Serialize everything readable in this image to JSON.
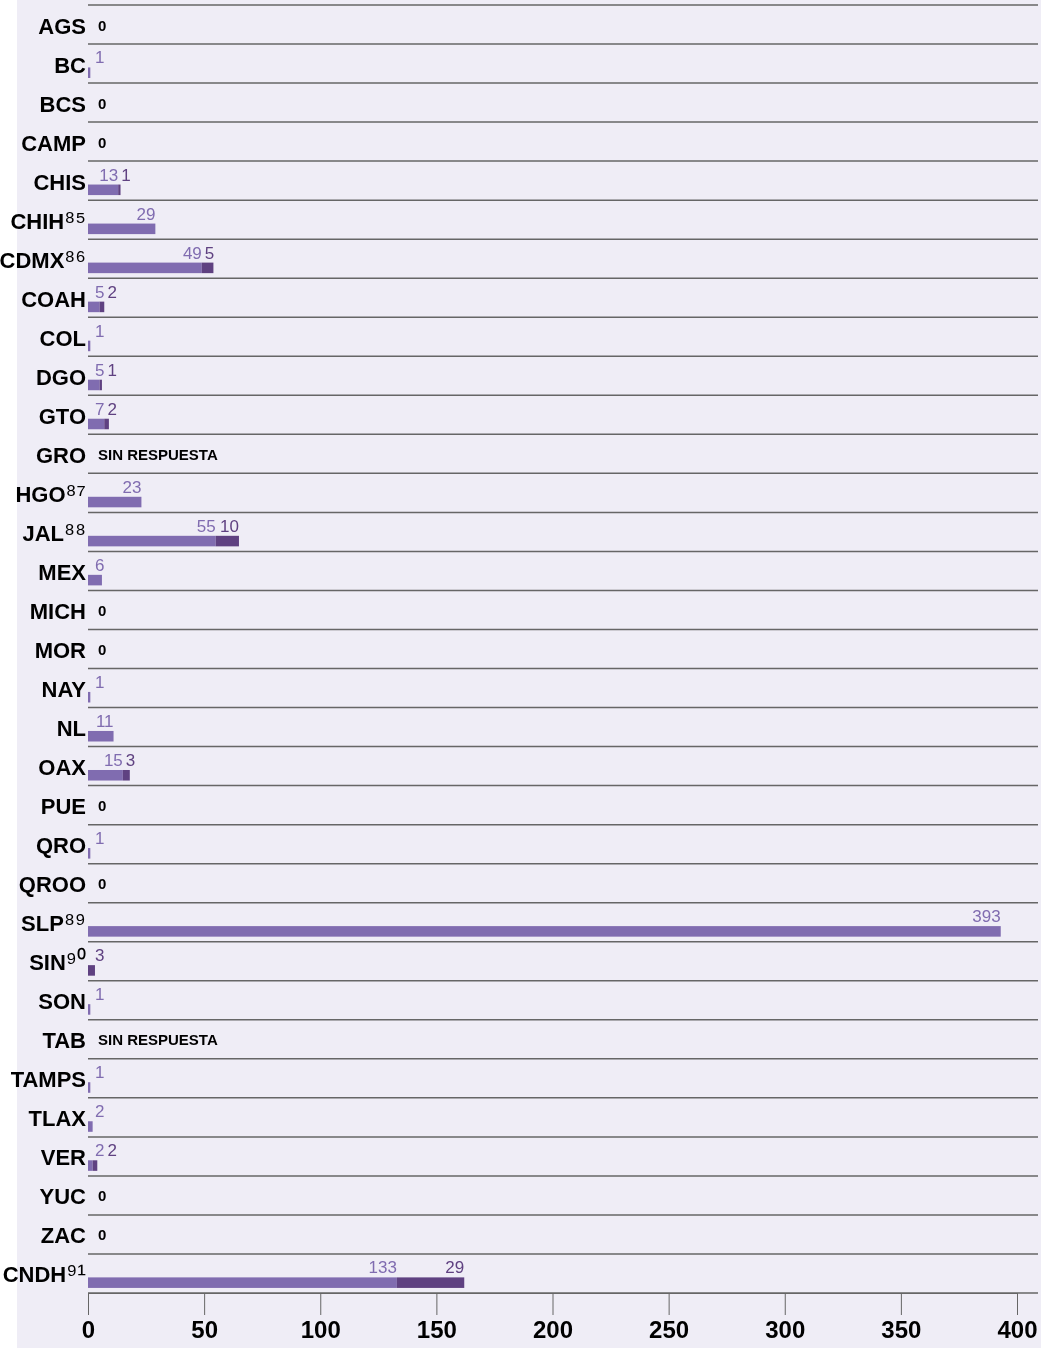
{
  "chart_data": {
    "type": "bar",
    "orientation": "horizontal",
    "stacked": true,
    "categories": [
      "AGS",
      "BC",
      "BCS",
      "CAMP",
      "CHIS",
      "CHIH⁸⁵",
      "CDMX⁸⁶",
      "COAH",
      "COL",
      "DGO",
      "GTO",
      "GRO",
      "HGO⁸⁷",
      "JAL⁸⁸",
      "MEX",
      "MICH",
      "MOR",
      "NAY",
      "NL",
      "OAX",
      "PUE",
      "QRO",
      "QROO",
      "SLP⁸⁹",
      "SIN⁹⁰",
      "SON",
      "TAB",
      "TAMPS",
      "TLAX",
      "VER",
      "YUC",
      "ZAC",
      "CNDH⁹¹"
    ],
    "series": [
      {
        "color": "#806cb0",
        "values": [
          0,
          1,
          0,
          0,
          13,
          29,
          49,
          5,
          1,
          5,
          7,
          null,
          23,
          55,
          6,
          0,
          0,
          1,
          11,
          15,
          0,
          1,
          0,
          393,
          0,
          1,
          null,
          1,
          2,
          2,
          0,
          0,
          133
        ],
        "value_labels": [
          "0",
          "1",
          "0",
          "0",
          "13",
          "29",
          "49",
          "5",
          "1",
          "5",
          "7",
          "SIN RESPUESTA",
          "23",
          "55",
          "6",
          "0",
          "0",
          "1",
          "11",
          "15",
          "0",
          "1",
          "0",
          "393",
          null,
          "1",
          "SIN RESPUESTA",
          "1",
          "2",
          "2",
          "0",
          "0",
          "133"
        ]
      },
      {
        "color": "#5f4181",
        "values": [
          null,
          null,
          null,
          null,
          1,
          null,
          5,
          2,
          null,
          1,
          2,
          null,
          null,
          10,
          null,
          null,
          null,
          null,
          null,
          3,
          null,
          null,
          null,
          null,
          3,
          null,
          null,
          null,
          null,
          2,
          null,
          null,
          29
        ],
        "value_labels": [
          null,
          null,
          null,
          null,
          "1",
          null,
          "5",
          "2",
          null,
          "1",
          "2",
          null,
          null,
          "10",
          null,
          null,
          null,
          null,
          null,
          "3",
          null,
          null,
          null,
          null,
          "3",
          null,
          null,
          null,
          null,
          "2",
          null,
          null,
          "29"
        ]
      }
    ],
    "xlim": [
      0,
      400
    ],
    "xticks": [
      0,
      50,
      100,
      150,
      200,
      250,
      300,
      350,
      400
    ]
  }
}
